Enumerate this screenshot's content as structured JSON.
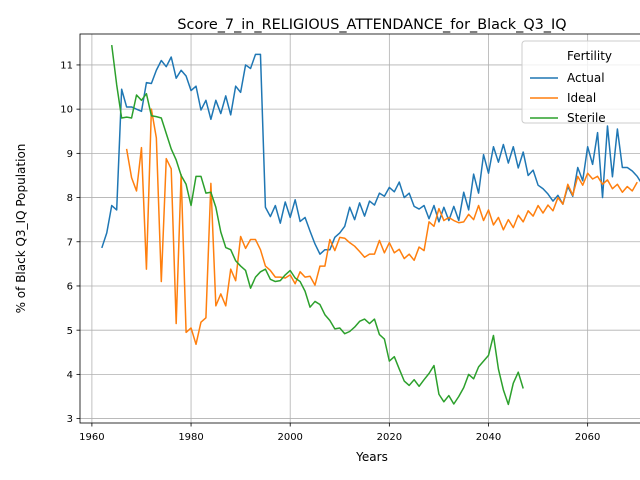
{
  "chart_data": {
    "type": "line",
    "title": "Score_7_in_RELIGIOUS_ATTENDANCE_for_Black_Q3_IQ",
    "xlabel": "Years",
    "ylabel": "% of Black Q3_IQ Population",
    "xlim": [
      1957.6,
      2075.4
    ],
    "ylim": [
      2.9,
      11.7
    ],
    "xticks": [
      1960,
      1980,
      2000,
      2020,
      2040,
      2060
    ],
    "yticks": [
      3,
      4,
      5,
      6,
      7,
      8,
      9,
      10,
      11
    ],
    "grid": true,
    "legend": {
      "title": "Fertility",
      "placement": "top-right"
    },
    "series": [
      {
        "name": "Actual",
        "color": "#1f77b4",
        "x_start": 1962,
        "x_step": 1,
        "values": [
          6.86,
          7.2,
          7.82,
          7.72,
          10.45,
          10.05,
          10.05,
          10.0,
          9.95,
          10.6,
          10.58,
          10.88,
          11.1,
          10.96,
          11.18,
          10.7,
          10.88,
          10.75,
          10.42,
          10.52,
          9.98,
          10.2,
          9.77,
          10.2,
          9.9,
          10.3,
          9.87,
          10.52,
          10.38,
          11.0,
          10.92,
          11.24,
          11.24,
          7.78,
          7.57,
          7.82,
          7.42,
          7.9,
          7.55,
          7.95,
          7.46,
          7.55,
          7.24,
          6.95,
          6.72,
          6.82,
          6.82,
          7.1,
          7.2,
          7.35,
          7.78,
          7.5,
          7.88,
          7.58,
          7.92,
          7.83,
          8.1,
          8.03,
          8.23,
          8.13,
          8.35,
          8.0,
          8.1,
          7.8,
          7.74,
          7.82,
          7.52,
          7.82,
          7.45,
          7.78,
          7.48,
          7.8,
          7.48,
          8.12,
          7.72,
          8.53,
          8.1,
          8.97,
          8.55,
          9.15,
          8.8,
          9.2,
          8.78,
          9.15,
          8.67,
          9.03,
          8.5,
          8.62,
          8.28,
          8.2,
          8.08,
          7.92,
          8.05,
          7.85,
          8.25,
          8.03,
          8.68,
          8.38,
          9.15,
          8.75,
          9.47,
          8.0,
          9.62,
          8.47,
          9.55,
          8.68,
          8.68,
          8.6,
          8.48,
          8.3
        ]
      },
      {
        "name": "Ideal",
        "color": "#ff7f0e",
        "x_start": 1967,
        "x_step": 1,
        "values": [
          9.1,
          8.45,
          8.15,
          9.13,
          6.38,
          10.0,
          9.35,
          6.1,
          8.88,
          8.65,
          5.15,
          8.52,
          4.95,
          5.05,
          4.68,
          5.18,
          5.28,
          8.32,
          5.55,
          5.82,
          5.55,
          6.38,
          6.12,
          7.12,
          6.85,
          7.05,
          7.05,
          6.82,
          6.45,
          6.35,
          6.2,
          6.2,
          6.18,
          6.25,
          6.05,
          6.32,
          6.2,
          6.22,
          6.02,
          6.45,
          6.45,
          7.05,
          6.8,
          7.1,
          7.08,
          6.98,
          6.9,
          6.78,
          6.65,
          6.72,
          6.72,
          7.03,
          6.75,
          6.98,
          6.75,
          6.83,
          6.62,
          6.72,
          6.58,
          6.88,
          6.8,
          7.45,
          7.35,
          7.75,
          7.48,
          7.55,
          7.48,
          7.43,
          7.45,
          7.62,
          7.5,
          7.82,
          7.48,
          7.72,
          7.38,
          7.55,
          7.27,
          7.5,
          7.32,
          7.6,
          7.45,
          7.7,
          7.58,
          7.82,
          7.65,
          7.83,
          7.7,
          8.0,
          7.85,
          8.3,
          8.05,
          8.48,
          8.28,
          8.55,
          8.42,
          8.48,
          8.3,
          8.4,
          8.2,
          8.3,
          8.12,
          8.25,
          8.15,
          8.35
        ]
      },
      {
        "name": "Sterile",
        "color": "#2ca02c",
        "x_start": 1964,
        "x_step": 1,
        "values": [
          11.45,
          10.55,
          9.8,
          9.82,
          9.8,
          10.32,
          10.2,
          10.35,
          9.85,
          9.83,
          9.8,
          9.45,
          9.1,
          8.85,
          8.5,
          8.3,
          7.82,
          8.48,
          8.48,
          8.1,
          8.12,
          7.78,
          7.22,
          6.87,
          6.82,
          6.57,
          6.45,
          6.35,
          5.95,
          6.2,
          6.32,
          6.38,
          6.15,
          6.1,
          6.12,
          6.25,
          6.35,
          6.18,
          6.1,
          5.88,
          5.52,
          5.65,
          5.58,
          5.35,
          5.22,
          5.03,
          5.05,
          4.92,
          4.97,
          5.07,
          5.2,
          5.25,
          5.15,
          5.25,
          4.9,
          4.8,
          4.3,
          4.4,
          4.12,
          3.85,
          3.75,
          3.88,
          3.73,
          3.88,
          4.02,
          4.2,
          3.55,
          3.38,
          3.52,
          3.33,
          3.5,
          3.7,
          4.0,
          3.9,
          4.17,
          4.3,
          4.43,
          4.88,
          4.12,
          3.65,
          3.32,
          3.8,
          4.05,
          3.68
        ]
      }
    ]
  }
}
